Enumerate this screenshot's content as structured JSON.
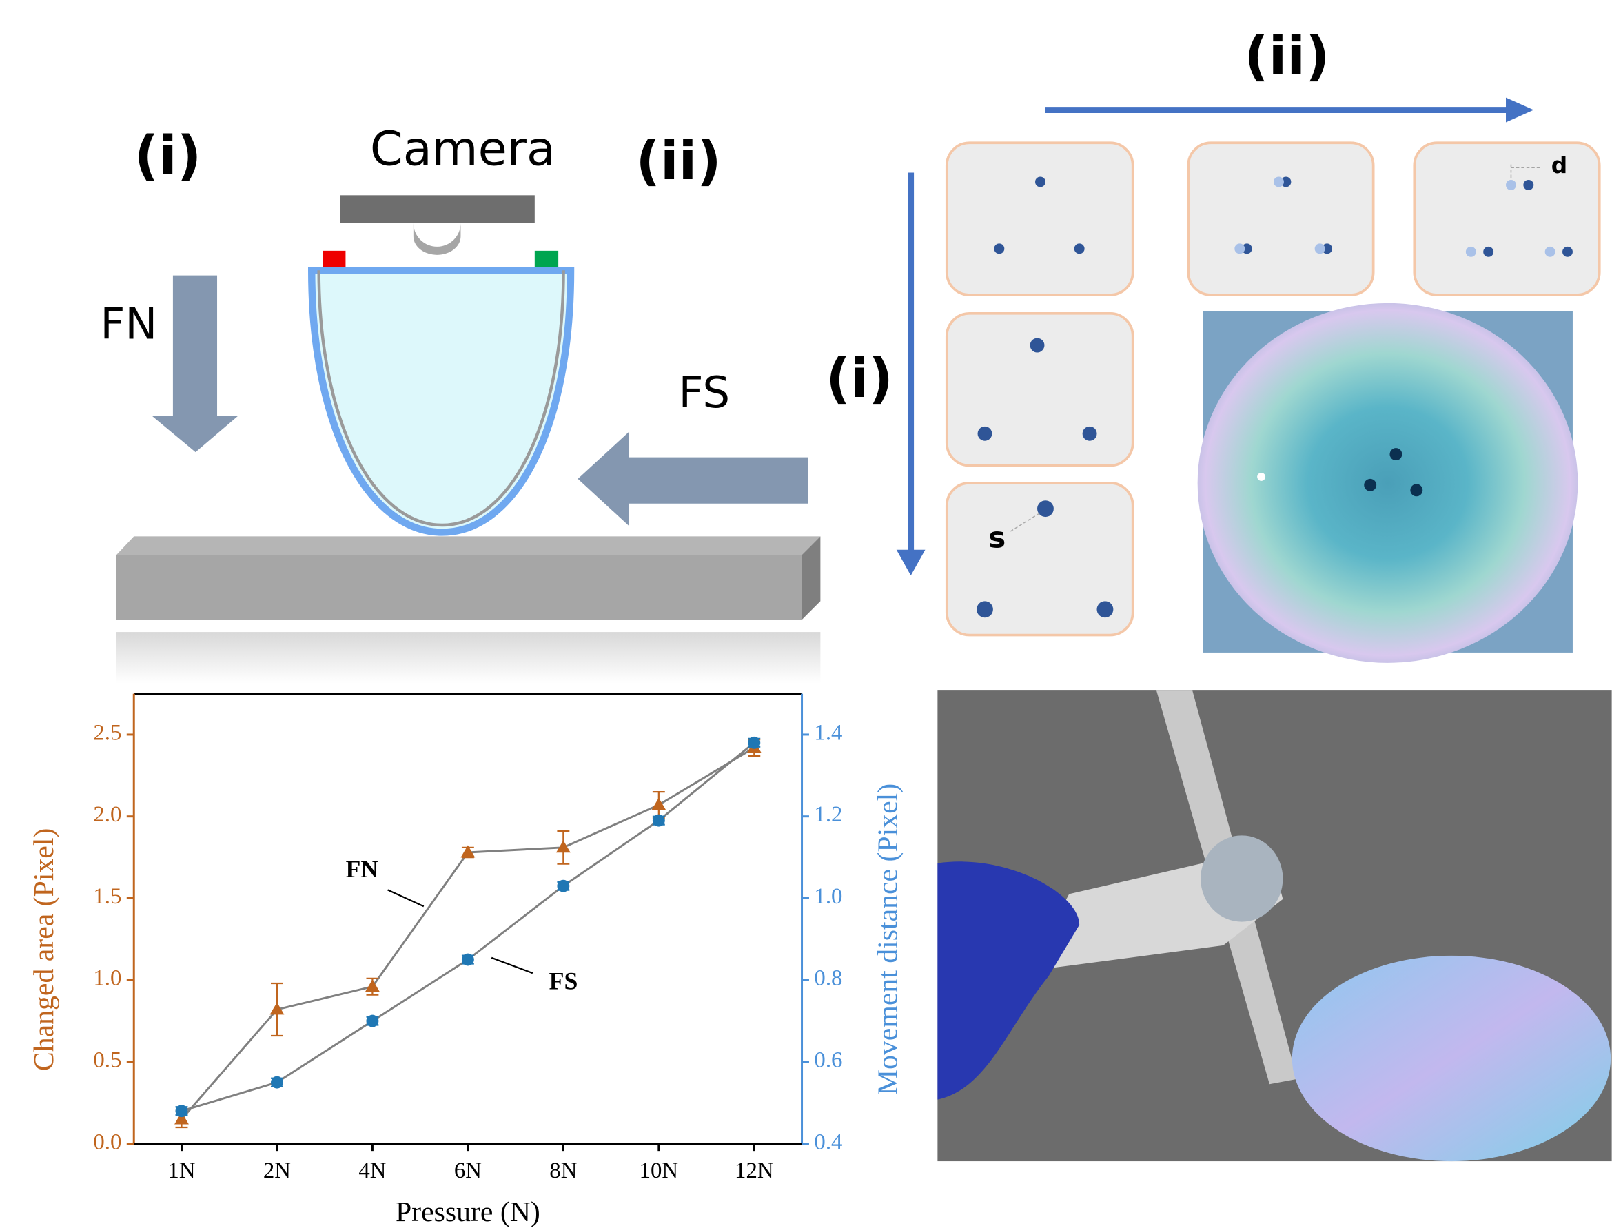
{
  "diagram": {
    "left_label": "(i)",
    "camera": "Camera",
    "right_label": "(ii)",
    "normal_force": "FN",
    "shear_force": "FS",
    "grid_top_label": "(ii)",
    "grid_side_label": "(i)",
    "d_label": "d",
    "s_label": "s"
  },
  "chart_data": {
    "type": "line",
    "xlabel": "Pressure (N)",
    "ylabel": "Changed area (Pixel)",
    "y2label": "Movement distance (Pixel)",
    "categories": [
      "1N",
      "2N",
      "4N",
      "6N",
      "8N",
      "10N",
      "12N"
    ],
    "series": [
      {
        "name": "FN",
        "color": "#c0651e",
        "marker": "triangle",
        "values": [
          0.15,
          0.82,
          0.96,
          1.78,
          1.81,
          2.07,
          2.42
        ],
        "errors": [
          0.05,
          0.16,
          0.05,
          0.03,
          0.1,
          0.08,
          0.05
        ]
      },
      {
        "name": "FS",
        "color": "#1f77b4",
        "marker": "circle",
        "axis": "y2",
        "values": [
          0.48,
          0.55,
          0.7,
          0.85,
          1.03,
          1.19,
          1.38
        ],
        "errors": [
          0.01,
          0.01,
          0.01,
          0.01,
          0.01,
          0.01,
          0.01
        ]
      }
    ],
    "ylim": [
      0,
      2.75
    ],
    "yticks": [
      {
        "value": 0,
        "label": "0.0"
      },
      0.5,
      {
        "value": 1,
        "label": "1.0"
      },
      1.5,
      {
        "value": 2,
        "label": "2.0"
      },
      2.5
    ],
    "y2lim": [
      0.4,
      1.5
    ],
    "y2ticks": [
      0.4,
      0.6,
      0.8,
      {
        "value": 1,
        "label": "1.0"
      },
      1.2,
      1.4
    ],
    "ycolor": "#c0651e",
    "y2color": "#4a90d9",
    "line_color": "#808080"
  }
}
